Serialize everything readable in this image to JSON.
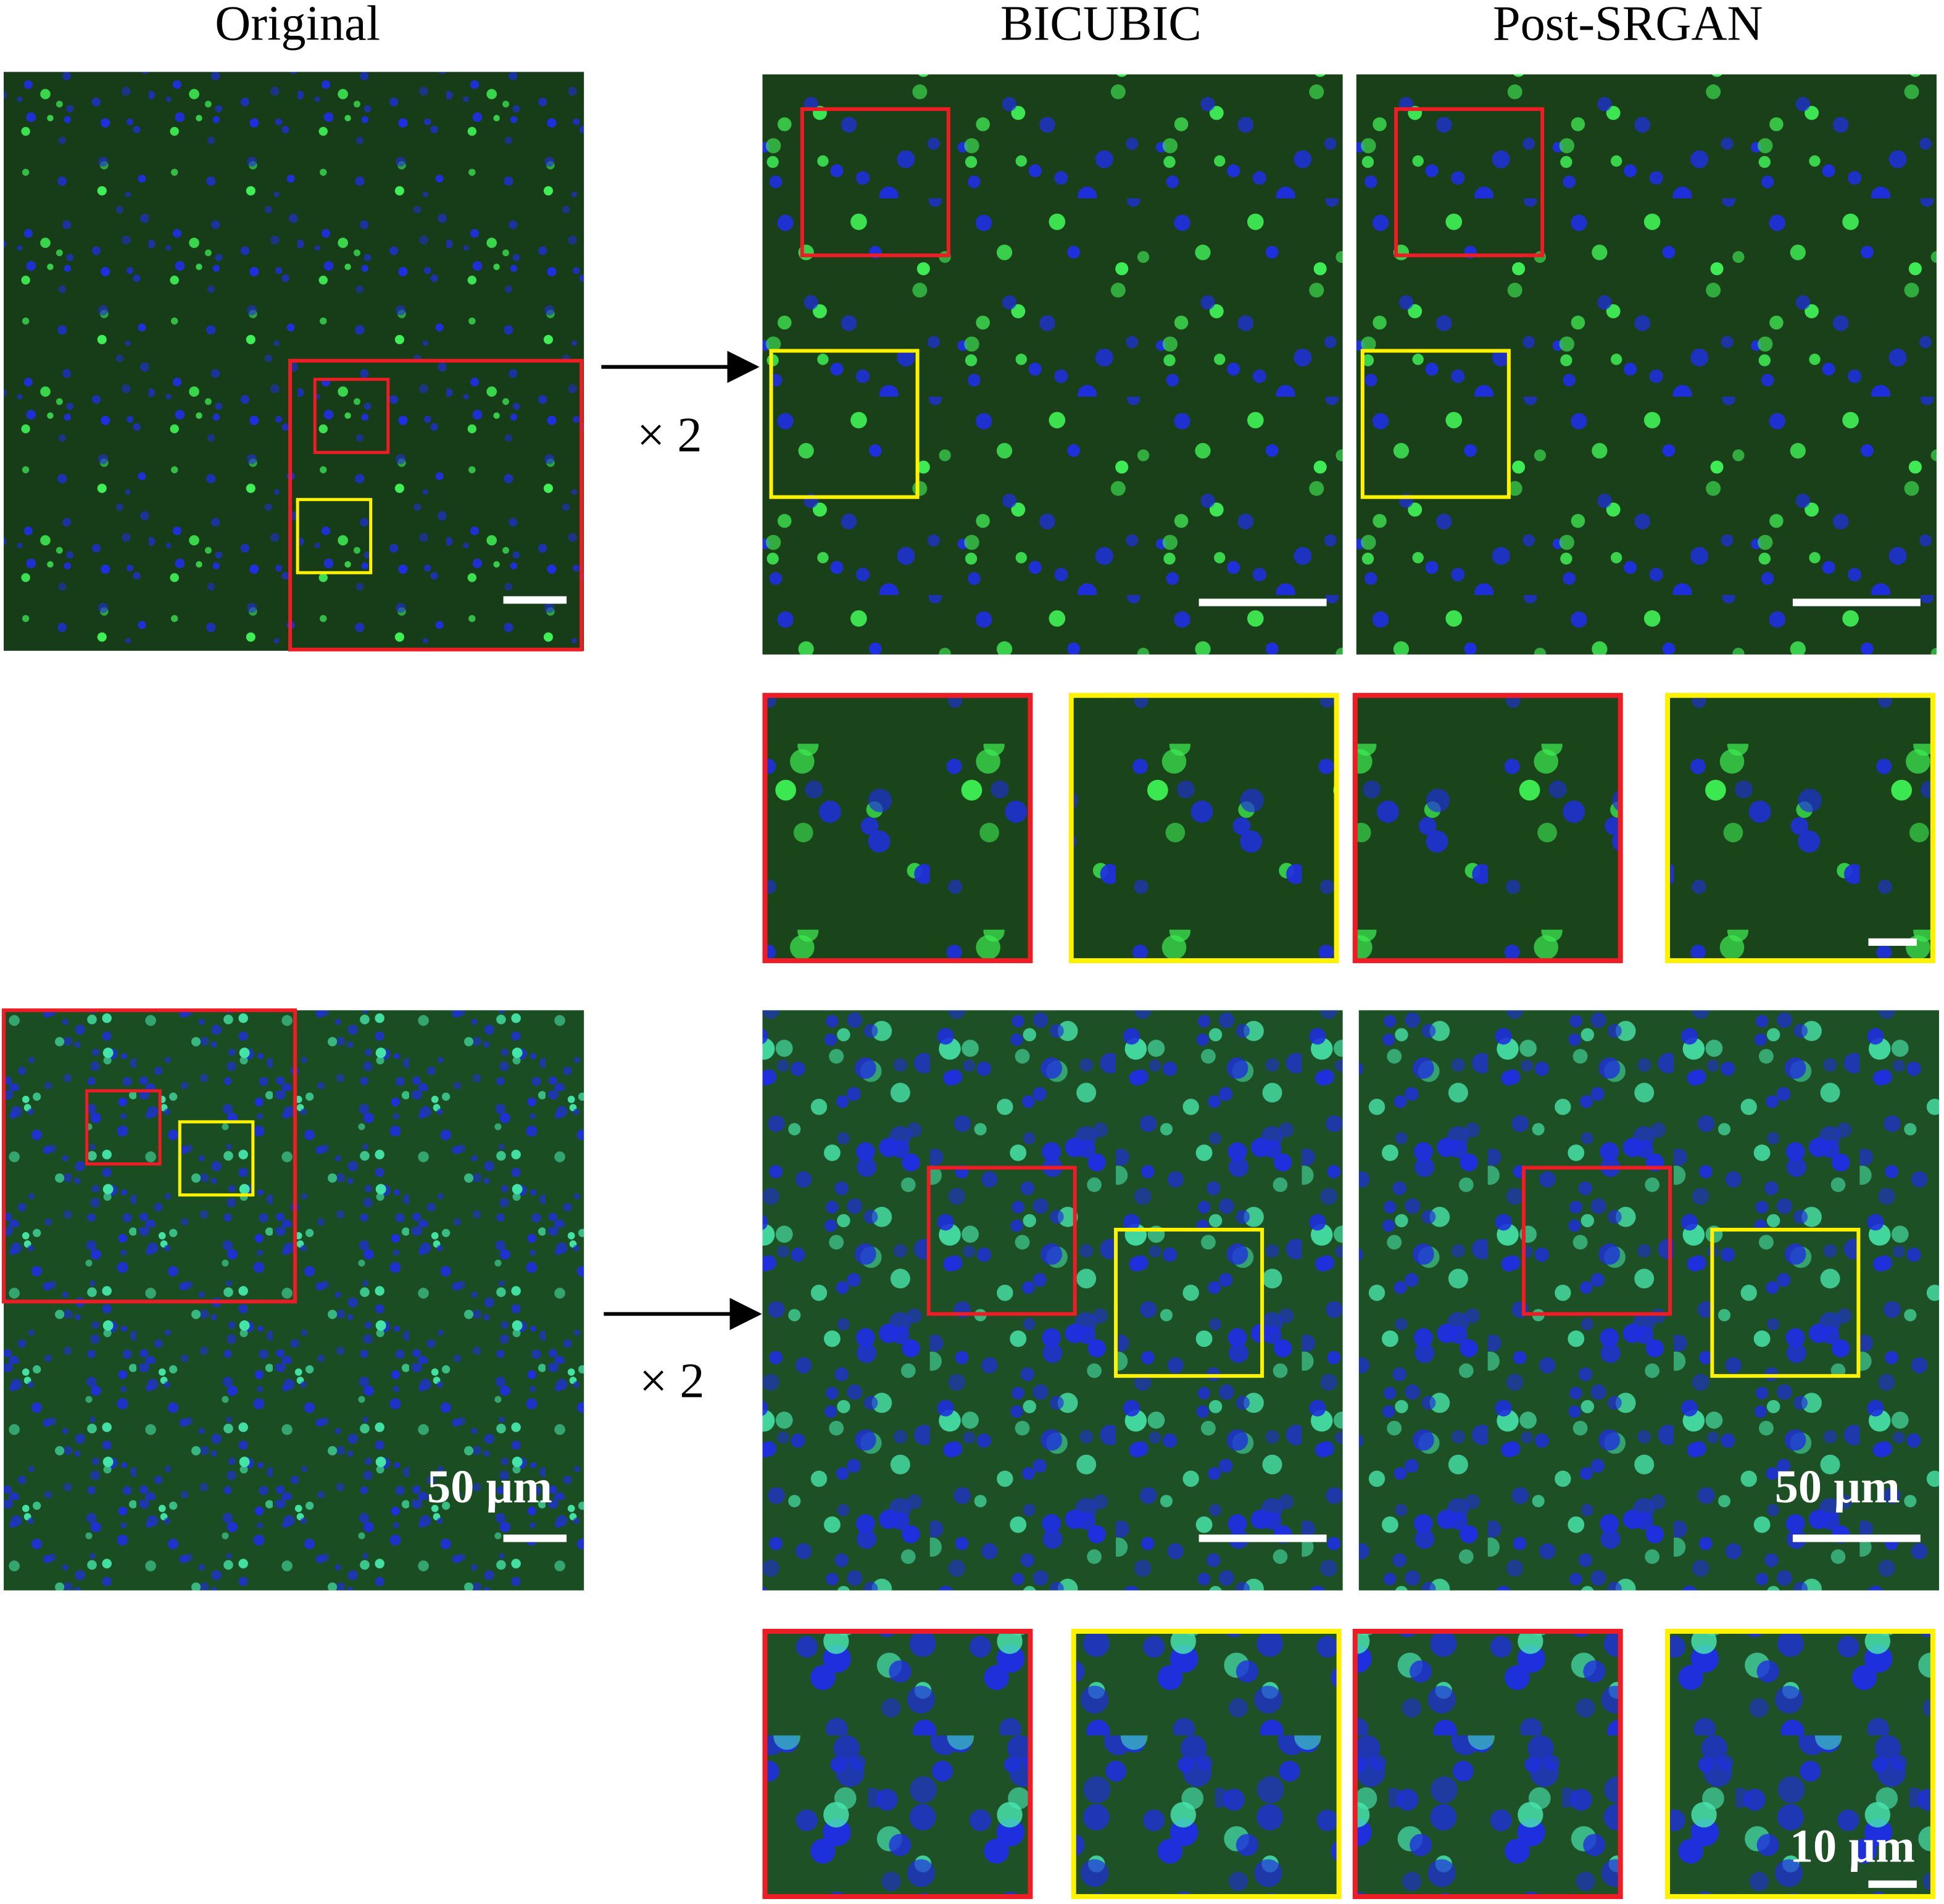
{
  "header": {
    "columns": [
      "Original",
      "BICUBIC",
      "Post-SRGAN"
    ]
  },
  "rows": [
    {
      "magnification": "× 2"
    },
    {
      "magnification": "× 2",
      "original_scale": "50 µm",
      "upscaled_scale": "50 µm",
      "zoom_scale": "10 µm"
    }
  ]
}
